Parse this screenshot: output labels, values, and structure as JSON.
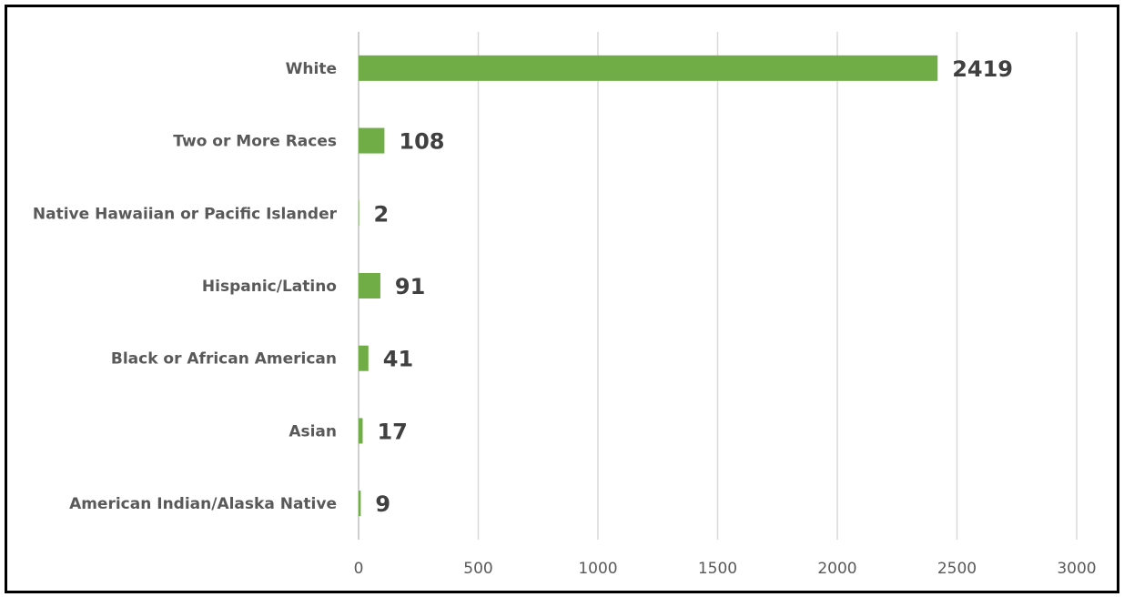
{
  "chart_data": {
    "type": "bar",
    "orientation": "horizontal",
    "categories": [
      "White",
      "Two or More Races",
      "Native Hawaiian or Pacific Islander",
      "Hispanic/Latino",
      "Black or African American",
      "Asian",
      "American Indian/Alaska Native"
    ],
    "values": [
      2419,
      108,
      2,
      91,
      41,
      17,
      9
    ],
    "data_labels": [
      "2419",
      "108",
      "2",
      "91",
      "41",
      "17",
      "9"
    ],
    "xlim": [
      0,
      3000
    ],
    "xticks": [
      0,
      500,
      1000,
      1500,
      2000,
      2500,
      3000
    ],
    "xtick_labels": [
      "0",
      "500",
      "1000",
      "1500",
      "2000",
      "2500",
      "3000"
    ],
    "grid": "vertical",
    "legend": "none",
    "bar_color": "#70AD47",
    "title": "",
    "xlabel": "",
    "ylabel": ""
  }
}
